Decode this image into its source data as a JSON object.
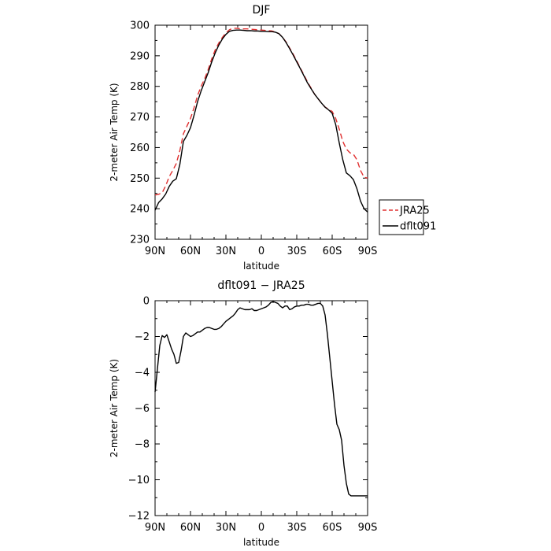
{
  "chart_data": [
    {
      "type": "line",
      "title": "DJF",
      "xlabel": "latitude",
      "ylabel": "2-meter Air Temp (K)",
      "xlim": [
        90,
        -90
      ],
      "ylim": [
        230,
        300
      ],
      "x_ticks": [
        90,
        60,
        30,
        0,
        -30,
        -60,
        -90
      ],
      "x_tick_labels": [
        "90N",
        "60N",
        "30N",
        "0",
        "30S",
        "60S",
        "90S"
      ],
      "y_ticks": [
        230,
        240,
        250,
        260,
        270,
        280,
        290,
        300
      ],
      "y_tick_labels": [
        "230",
        "240",
        "250",
        "260",
        "270",
        "280",
        "290",
        "300"
      ],
      "legend": {
        "placement": "right",
        "entries": [
          "JRA25",
          "dflt091"
        ]
      },
      "series": [
        {
          "name": "JRA25",
          "color": "#e03030",
          "dash": "dashed",
          "x": [
            90,
            87,
            84,
            81,
            78,
            75,
            72,
            69,
            66,
            63,
            60,
            57,
            54,
            51,
            48,
            45,
            42,
            39,
            36,
            33,
            30,
            27,
            24,
            21,
            18,
            15,
            12,
            9,
            6,
            3,
            0,
            -3,
            -6,
            -9,
            -12,
            -15,
            -18,
            -21,
            -24,
            -27,
            -30,
            -33,
            -36,
            -39,
            -42,
            -45,
            -48,
            -51,
            -54,
            -57,
            -60,
            -63,
            -66,
            -69,
            -72,
            -75,
            -78,
            -81,
            -84,
            -87,
            -90
          ],
          "values": [
            244.5,
            244.7,
            245.2,
            247.5,
            250.5,
            252.5,
            254.8,
            259,
            264.5,
            267,
            269.5,
            273,
            277,
            280,
            282.5,
            285.5,
            289,
            292,
            294.2,
            296,
            297.5,
            298.5,
            299,
            299,
            298.8,
            298.8,
            298.8,
            298.7,
            298.6,
            298.5,
            298.4,
            298.3,
            298.2,
            298.1,
            297.8,
            297.2,
            296,
            294.5,
            292.5,
            290.5,
            288.3,
            286,
            283.8,
            281.5,
            279.5,
            277.5,
            276,
            274.5,
            273.2,
            272.5,
            271.8,
            269.5,
            266,
            262,
            259.5,
            258.3,
            257.8,
            256,
            252.5,
            250.3,
            250
          ]
        },
        {
          "name": "dflt091",
          "color": "#000000",
          "dash": "solid",
          "x": [
            90,
            87,
            84,
            81,
            78,
            75,
            72,
            69,
            66,
            63,
            60,
            57,
            54,
            51,
            48,
            45,
            42,
            39,
            36,
            33,
            30,
            27,
            24,
            21,
            18,
            15,
            12,
            9,
            6,
            3,
            0,
            -3,
            -6,
            -9,
            -12,
            -15,
            -18,
            -21,
            -24,
            -27,
            -30,
            -33,
            -36,
            -39,
            -42,
            -45,
            -48,
            -51,
            -54,
            -57,
            -60,
            -63,
            -66,
            -69,
            -72,
            -75,
            -78,
            -81,
            -84,
            -87,
            -90
          ],
          "values": [
            239.5,
            242,
            243.2,
            244.8,
            247.3,
            249,
            249.8,
            254.5,
            262,
            264,
            266.5,
            270.5,
            275,
            278.5,
            281.5,
            284.5,
            288,
            291,
            293.5,
            295.5,
            297,
            298,
            298.3,
            298.4,
            298.4,
            298.3,
            298.2,
            298.2,
            298.1,
            298.1,
            298,
            298,
            297.9,
            297.9,
            297.7,
            297.2,
            296,
            294.3,
            292.3,
            290.2,
            288,
            285.8,
            283.5,
            281.2,
            279.3,
            277.5,
            276,
            274.5,
            273.2,
            272.3,
            271.2,
            267.5,
            261.5,
            256,
            251.7,
            250.8,
            249.5,
            246.5,
            242.5,
            240,
            238.9
          ]
        }
      ]
    },
    {
      "type": "line",
      "title": "dflt091  −  JRA25",
      "xlabel": "latitude",
      "ylabel": "2-meter Air Temp (K)",
      "xlim": [
        90,
        -90
      ],
      "ylim": [
        -12,
        0
      ],
      "x_ticks": [
        90,
        60,
        30,
        0,
        -30,
        -60,
        -90
      ],
      "x_tick_labels": [
        "90N",
        "60N",
        "30N",
        "0",
        "30S",
        "60S",
        "90S"
      ],
      "y_ticks": [
        0,
        -2,
        -4,
        -6,
        -8,
        -10,
        -12
      ],
      "y_tick_labels": [
        "0",
        "−2",
        "−4",
        "−6",
        "−8",
        "−10",
        "−12"
      ],
      "series": [
        {
          "color": "#000000",
          "dash": "solid",
          "x": [
            90,
            88,
            86,
            84,
            82,
            80,
            78,
            76,
            74,
            72,
            70,
            68,
            66,
            64,
            62,
            60,
            58,
            56,
            54,
            52,
            50,
            48,
            46,
            44,
            42,
            40,
            38,
            36,
            34,
            32,
            30,
            28,
            26,
            24,
            22,
            20,
            18,
            16,
            14,
            12,
            10,
            8,
            6,
            4,
            2,
            0,
            -2,
            -4,
            -6,
            -8,
            -10,
            -12,
            -14,
            -16,
            -18,
            -20,
            -22,
            -24,
            -26,
            -28,
            -30,
            -32,
            -34,
            -36,
            -38,
            -40,
            -42,
            -44,
            -46,
            -48,
            -50,
            -52,
            -54,
            -56,
            -58,
            -60,
            -62,
            -64,
            -66,
            -68,
            -70,
            -72,
            -74,
            -76,
            -78,
            -80,
            -82,
            -84,
            -86,
            -88,
            -90
          ],
          "values": [
            -5.1,
            -3.8,
            -2.5,
            -1.95,
            -2.05,
            -1.9,
            -2.3,
            -2.7,
            -3.0,
            -3.5,
            -3.45,
            -2.8,
            -2.0,
            -1.8,
            -1.9,
            -2.0,
            -1.95,
            -1.85,
            -1.75,
            -1.75,
            -1.65,
            -1.55,
            -1.5,
            -1.5,
            -1.55,
            -1.6,
            -1.6,
            -1.55,
            -1.45,
            -1.3,
            -1.15,
            -1.05,
            -0.95,
            -0.85,
            -0.7,
            -0.5,
            -0.4,
            -0.45,
            -0.5,
            -0.5,
            -0.5,
            -0.45,
            -0.55,
            -0.55,
            -0.5,
            -0.45,
            -0.4,
            -0.35,
            -0.25,
            -0.1,
            -0.05,
            -0.1,
            -0.15,
            -0.3,
            -0.4,
            -0.3,
            -0.3,
            -0.5,
            -0.45,
            -0.35,
            -0.3,
            -0.3,
            -0.25,
            -0.25,
            -0.2,
            -0.2,
            -0.25,
            -0.25,
            -0.2,
            -0.15,
            -0.15,
            -0.3,
            -0.8,
            -1.9,
            -3.2,
            -4.5,
            -5.8,
            -6.9,
            -7.2,
            -7.8,
            -9.2,
            -10.2,
            -10.8,
            -10.9,
            -10.9,
            -10.9,
            -10.9,
            -10.9,
            -10.9,
            -10.9,
            -10.9
          ]
        }
      ]
    }
  ]
}
